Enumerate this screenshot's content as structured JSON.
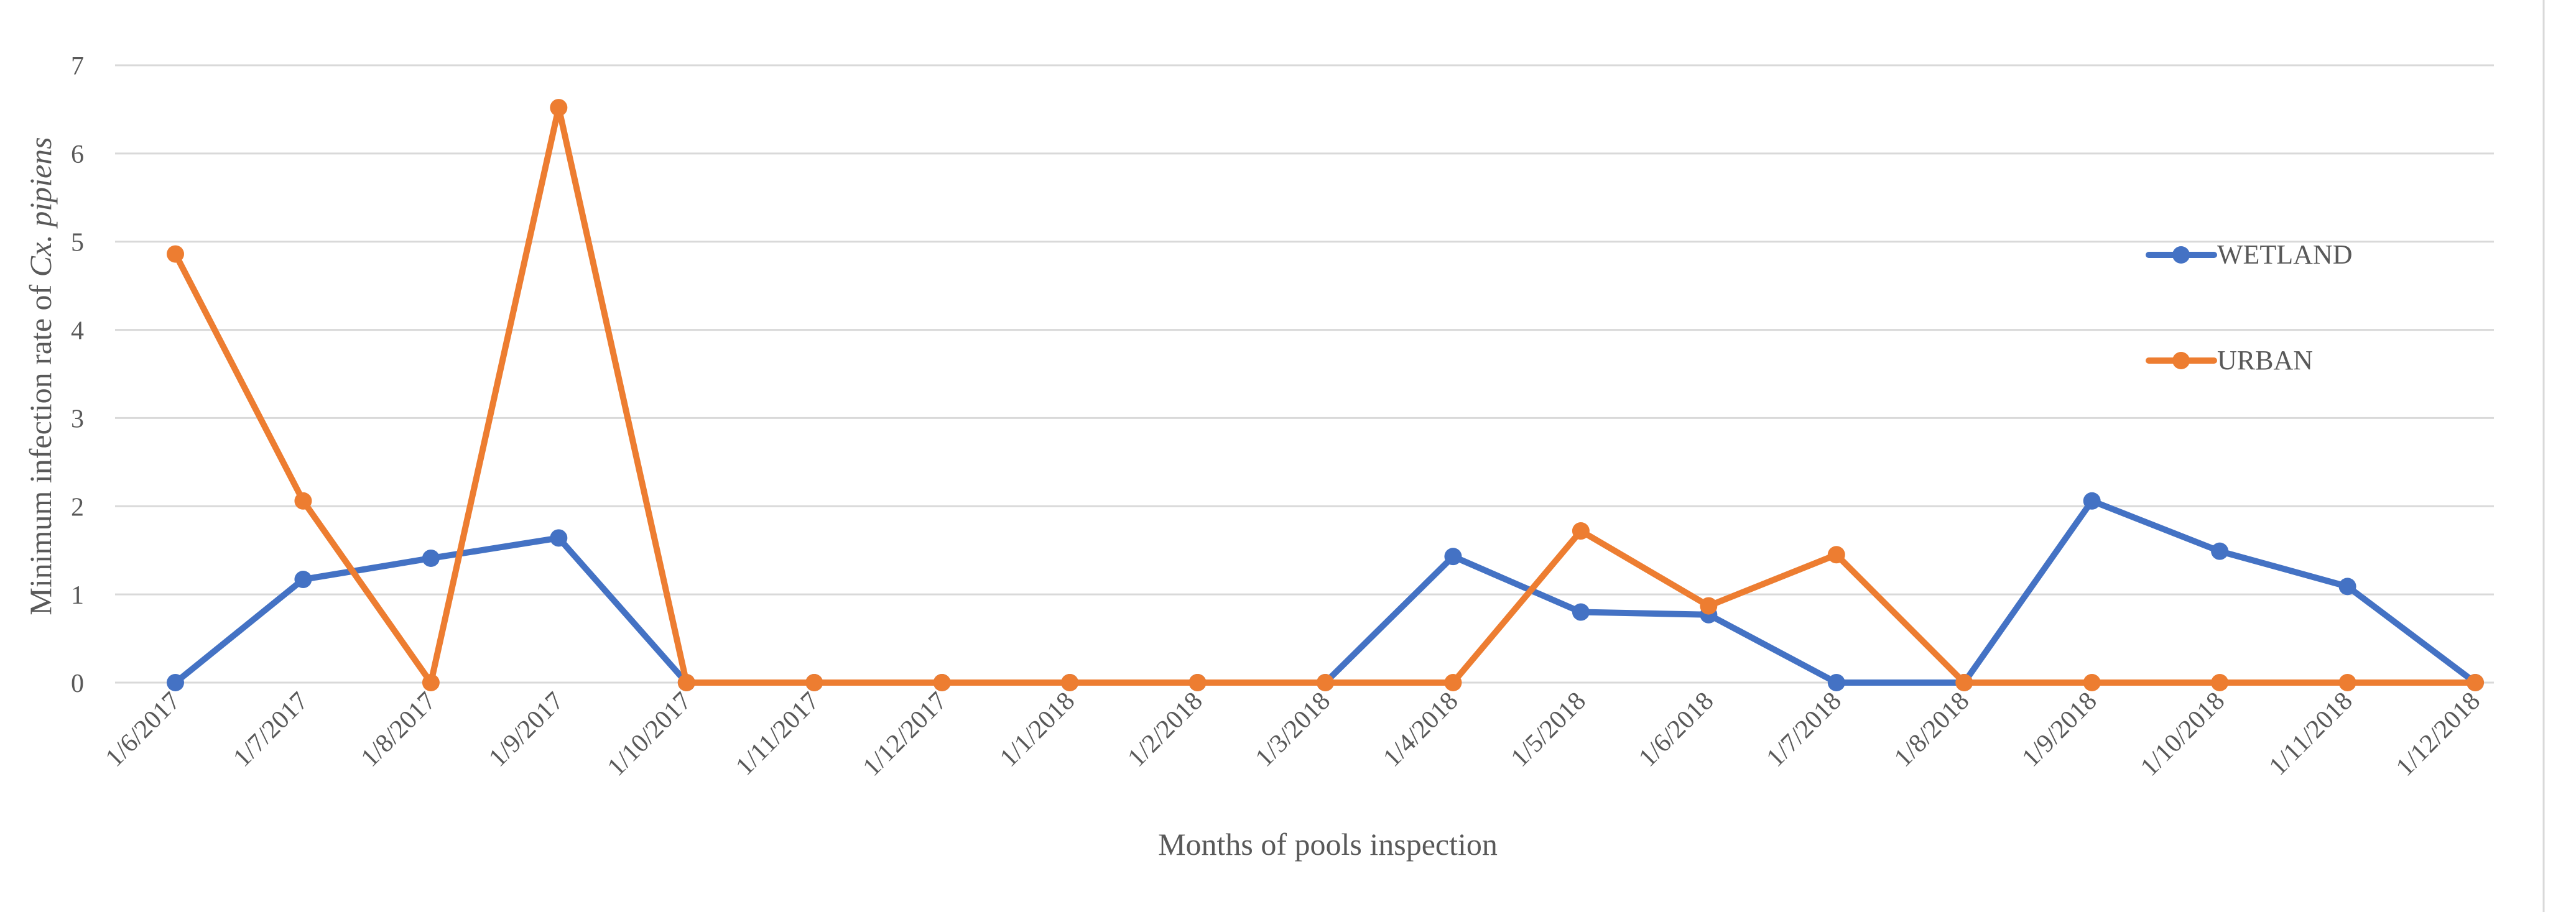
{
  "chart_data": {
    "type": "line",
    "title": "",
    "xlabel": "Months of pools inspection",
    "ylabel_prefix": "Minimum infection rate of ",
    "ylabel_species": "Cx. pipiens",
    "ylim": [
      0,
      7
    ],
    "yticks": [
      0,
      1,
      2,
      3,
      4,
      5,
      6,
      7
    ],
    "grid": true,
    "legend_position": "right",
    "categories": [
      "1/6/2017",
      "1/7/2017",
      "1/8/2017",
      "1/9/2017",
      "1/10/2017",
      "1/11/2017",
      "1/12/2017",
      "1/1/2018",
      "1/2/2018",
      "1/3/2018",
      "1/4/2018",
      "1/5/2018",
      "1/6/2018",
      "1/7/2018",
      "1/8/2018",
      "1/9/2018",
      "1/10/2018",
      "1/11/2018",
      "1/12/2018"
    ],
    "series": [
      {
        "name": "WETLAND",
        "color": "#4472C4",
        "values": [
          0,
          1.17,
          1.41,
          1.64,
          0,
          0,
          0,
          0,
          0,
          0,
          1.43,
          0.8,
          0.77,
          0,
          0,
          2.06,
          1.49,
          1.09,
          0
        ]
      },
      {
        "name": "URBAN",
        "color": "#ED7D31",
        "values": [
          4.86,
          2.06,
          0,
          6.52,
          0,
          0,
          0,
          0,
          0,
          0,
          0,
          1.72,
          0.87,
          1.45,
          0,
          0,
          0,
          0,
          0
        ]
      }
    ],
    "colors": {
      "grid": "#d9d9d9",
      "text": "#595959",
      "border": "#d9d9d9"
    }
  }
}
